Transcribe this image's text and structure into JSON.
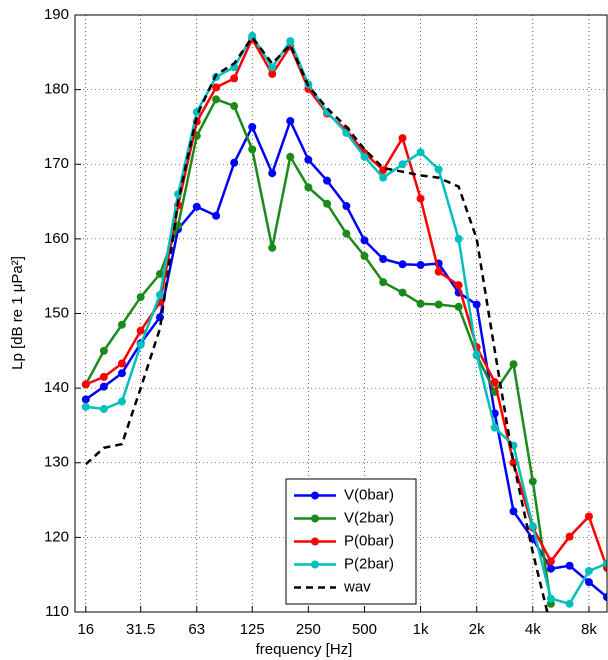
{
  "chart_data": {
    "type": "line",
    "xlabel": "frequency [Hz]",
    "ylabel": "Lp [dB re 1 μPa²]",
    "x": [
      16,
      20,
      25,
      31.5,
      40,
      50,
      63,
      80,
      100,
      125,
      160,
      200,
      250,
      315,
      400,
      500,
      630,
      800,
      1000,
      1250,
      1600,
      2000,
      2500,
      3150,
      4000,
      5000,
      6300,
      8000,
      10000
    ],
    "xscale": "log",
    "xlim": [
      14,
      10000
    ],
    "xticks": [
      16,
      31.5,
      63,
      125,
      250,
      500,
      {
        "value": 1000,
        "label": "1k"
      },
      {
        "value": 2000,
        "label": "2k"
      },
      {
        "value": 4000,
        "label": "4k"
      },
      {
        "value": 8000,
        "label": "8k"
      }
    ],
    "ylim": [
      110,
      190
    ],
    "yticks": [
      110,
      120,
      130,
      140,
      150,
      160,
      170,
      180,
      190
    ],
    "grid": true,
    "legend": "bottom-center",
    "series": [
      {
        "name": "V(0bar)",
        "color": "#0000ff",
        "marker": true,
        "dashed": false,
        "values": [
          138.5,
          140.2,
          142,
          146,
          149.5,
          161.3,
          164.3,
          163.1,
          170.2,
          175,
          168.8,
          175.8,
          170.6,
          167.8,
          164.4,
          159.8,
          157.3,
          156.6,
          156.5,
          156.7,
          152.8,
          151.2,
          136.6,
          123.5,
          119.8,
          115.8,
          116.2,
          114,
          112
        ]
      },
      {
        "name": "V(2bar)",
        "color": "#1a8a1a",
        "marker": true,
        "dashed": false,
        "values": [
          140.5,
          145,
          148.5,
          152.2,
          155.3,
          161.8,
          173.8,
          178.7,
          177.8,
          172,
          158.8,
          171,
          166.9,
          164.7,
          160.7,
          157.7,
          154.2,
          152.8,
          151.3,
          151.2,
          150.9,
          144.4,
          139.5,
          143.2,
          127.5,
          111.1,
          null,
          null,
          null
        ]
      },
      {
        "name": "P(0bar)",
        "color": "#ff0000",
        "marker": true,
        "dashed": false,
        "values": [
          140.5,
          141.5,
          143.3,
          147.7,
          151.5,
          164.5,
          175.7,
          180.3,
          181.5,
          186.8,
          182.1,
          185.8,
          180.1,
          176.8,
          174.6,
          171.5,
          169.2,
          173.5,
          165.4,
          155.6,
          153.8,
          145.5,
          140.8,
          130,
          121.3,
          116.8,
          120.1,
          122.8,
          115.9
        ]
      },
      {
        "name": "P(2bar)",
        "color": "#00bfbf",
        "marker": true,
        "dashed": false,
        "values": [
          137.5,
          137.2,
          138.2,
          145.8,
          152.5,
          166,
          177,
          181.7,
          183,
          187.2,
          183,
          186.5,
          180.7,
          177,
          174.2,
          171,
          168.2,
          170,
          171.6,
          169.3,
          160,
          144.5,
          134.7,
          132.3,
          121.5,
          111.8,
          111.1,
          115.5,
          116.5
        ]
      },
      {
        "name": "wav",
        "color": "#000000",
        "marker": false,
        "dashed": true,
        "values": [
          129.8,
          132,
          132.5,
          140,
          148,
          165,
          176.5,
          182,
          183.5,
          187,
          183.5,
          186,
          180.5,
          177.5,
          175,
          172,
          169.5,
          169,
          168.5,
          168.2,
          167,
          160,
          145,
          130,
          118,
          108,
          null,
          null,
          null
        ]
      }
    ]
  }
}
